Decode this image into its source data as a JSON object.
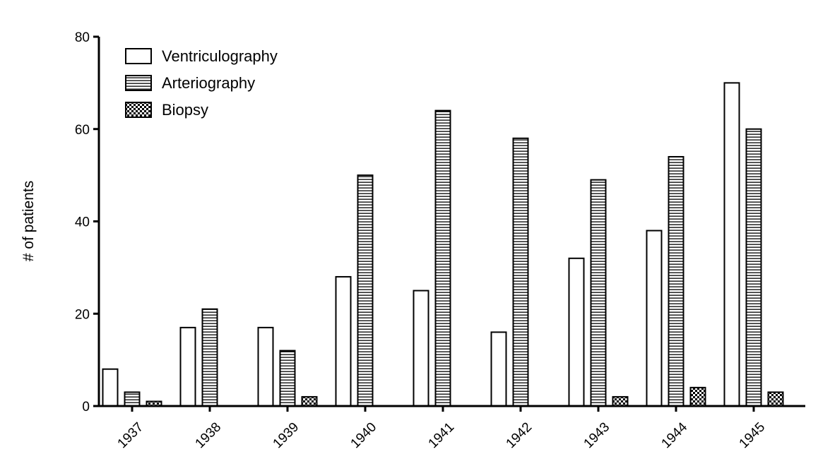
{
  "chart_data": {
    "type": "bar",
    "title": "",
    "xlabel": "",
    "ylabel": "# of patients",
    "ylim": [
      0,
      80
    ],
    "yticks": [
      "0",
      "20",
      "40",
      "60",
      "80"
    ],
    "categories": [
      "1937",
      "1938",
      "1939",
      "1940",
      "1941",
      "1942",
      "1943",
      "1944",
      "1945"
    ],
    "series": [
      {
        "name": "Ventriculography",
        "pattern": "open",
        "values": [
          8,
          17,
          17,
          28,
          25,
          16,
          32,
          38,
          70
        ]
      },
      {
        "name": "Arteriography",
        "pattern": "horizontal-stripes",
        "values": [
          3,
          21,
          12,
          50,
          64,
          58,
          49,
          54,
          60
        ]
      },
      {
        "name": "Biopsy",
        "pattern": "checkerboard",
        "values": [
          1,
          0,
          2,
          0,
          0,
          0,
          2,
          4,
          3
        ]
      }
    ],
    "legend_position": "top-left",
    "grid": false,
    "colors": {
      "stroke": "#000000",
      "fill": "#ffffff"
    }
  }
}
